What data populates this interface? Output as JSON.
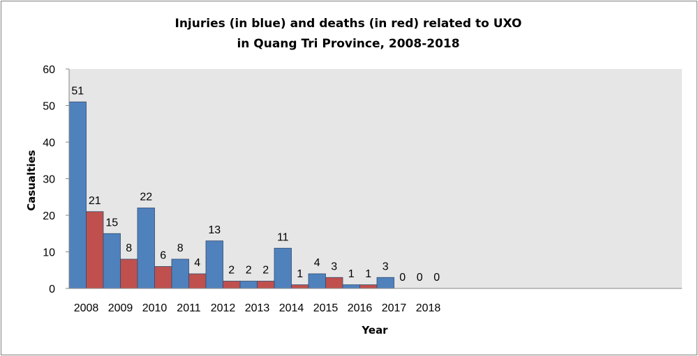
{
  "chart_data": {
    "type": "bar",
    "title_lines": [
      "Injuries (in blue) and deaths (in red) related to UXO",
      "in Quang Tri Province, 2008-2018"
    ],
    "xlabel": "Year",
    "ylabel": "Casualties",
    "ylim": [
      0,
      60
    ],
    "yticks": [
      0,
      10,
      20,
      30,
      40,
      50,
      60
    ],
    "grid": false,
    "legend": "none",
    "x_tick_labels": [
      "2008",
      "2009",
      "2010",
      "2011",
      "2012",
      "2013",
      "2014",
      "2015",
      "2016",
      "2017",
      "2018"
    ],
    "bars": [
      {
        "value": 51,
        "color": "#4f81bd"
      },
      {
        "value": 21,
        "color": "#c0504d"
      },
      {
        "value": 15,
        "color": "#4f81bd"
      },
      {
        "value": 8,
        "color": "#c0504d"
      },
      {
        "value": 22,
        "color": "#4f81bd"
      },
      {
        "value": 6,
        "color": "#c0504d"
      },
      {
        "value": 8,
        "color": "#4f81bd"
      },
      {
        "value": 4,
        "color": "#c0504d"
      },
      {
        "value": 13,
        "color": "#4f81bd"
      },
      {
        "value": 2,
        "color": "#c0504d"
      },
      {
        "value": 2,
        "color": "#4f81bd"
      },
      {
        "value": 2,
        "color": "#c0504d"
      },
      {
        "value": 11,
        "color": "#4f81bd"
      },
      {
        "value": 1,
        "color": "#c0504d"
      },
      {
        "value": 4,
        "color": "#4f81bd"
      },
      {
        "value": 3,
        "color": "#c0504d"
      },
      {
        "value": 1,
        "color": "#4f81bd"
      },
      {
        "value": 1,
        "color": "#c0504d"
      },
      {
        "value": 3,
        "color": "#4f81bd"
      },
      {
        "value": 0,
        "color": "#c0504d"
      },
      {
        "value": 0,
        "color": "#4f81bd"
      },
      {
        "value": 0,
        "color": "#c0504d"
      }
    ],
    "colors": {
      "injuries": "#4f81bd",
      "deaths": "#c0504d",
      "plot_background": "#e6e6e6"
    }
  }
}
